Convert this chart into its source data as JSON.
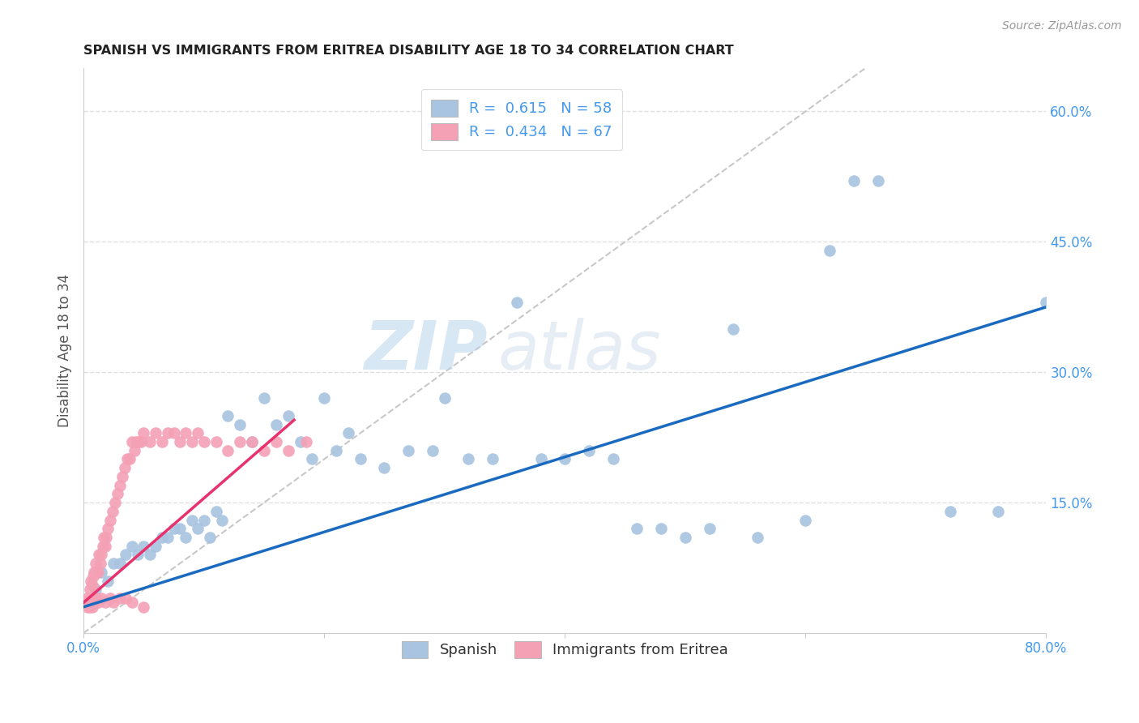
{
  "title": "SPANISH VS IMMIGRANTS FROM ERITREA DISABILITY AGE 18 TO 34 CORRELATION CHART",
  "source": "Source: ZipAtlas.com",
  "ylabel": "Disability Age 18 to 34",
  "x_min": 0.0,
  "x_max": 0.8,
  "y_min": 0.0,
  "y_max": 0.65,
  "x_ticks": [
    0.0,
    0.2,
    0.4,
    0.6,
    0.8
  ],
  "x_tick_labels": [
    "0.0%",
    "",
    "",
    "",
    "80.0%"
  ],
  "y_tick_labels": [
    "15.0%",
    "30.0%",
    "45.0%",
    "60.0%"
  ],
  "y_tick_vals": [
    0.15,
    0.3,
    0.45,
    0.6
  ],
  "blue_color": "#a8c4e0",
  "pink_color": "#f4a0b5",
  "blue_line_color": "#1a6bbf",
  "pink_line_color": "#e8326e",
  "diag_line_color": "#c8c8c8",
  "legend_R1": "0.615",
  "legend_N1": "58",
  "legend_R2": "0.434",
  "legend_N2": "67",
  "label1": "Spanish",
  "label2": "Immigrants from Eritrea",
  "watermark_zip": "ZIP",
  "watermark_atlas": "atlas",
  "blue_line_x": [
    0.0,
    0.8
  ],
  "blue_line_y": [
    0.03,
    0.375
  ],
  "pink_line_x": [
    0.0,
    0.175
  ],
  "pink_line_y": [
    0.035,
    0.245
  ],
  "blue_scatter_x": [
    0.01,
    0.015,
    0.02,
    0.025,
    0.03,
    0.035,
    0.04,
    0.045,
    0.05,
    0.055,
    0.06,
    0.065,
    0.07,
    0.075,
    0.08,
    0.085,
    0.09,
    0.095,
    0.1,
    0.105,
    0.11,
    0.115,
    0.12,
    0.13,
    0.14,
    0.15,
    0.16,
    0.17,
    0.18,
    0.19,
    0.2,
    0.21,
    0.22,
    0.23,
    0.25,
    0.27,
    0.29,
    0.3,
    0.32,
    0.34,
    0.36,
    0.38,
    0.4,
    0.42,
    0.44,
    0.46,
    0.48,
    0.5,
    0.52,
    0.54,
    0.56,
    0.6,
    0.62,
    0.64,
    0.66,
    0.72,
    0.76,
    0.8
  ],
  "blue_scatter_y": [
    0.05,
    0.07,
    0.06,
    0.08,
    0.08,
    0.09,
    0.1,
    0.09,
    0.1,
    0.09,
    0.1,
    0.11,
    0.11,
    0.12,
    0.12,
    0.11,
    0.13,
    0.12,
    0.13,
    0.11,
    0.14,
    0.13,
    0.25,
    0.24,
    0.22,
    0.27,
    0.24,
    0.25,
    0.22,
    0.2,
    0.27,
    0.21,
    0.23,
    0.2,
    0.19,
    0.21,
    0.21,
    0.27,
    0.2,
    0.2,
    0.38,
    0.2,
    0.2,
    0.21,
    0.2,
    0.12,
    0.12,
    0.11,
    0.12,
    0.35,
    0.11,
    0.13,
    0.44,
    0.52,
    0.52,
    0.14,
    0.14,
    0.38
  ],
  "pink_scatter_x": [
    0.003,
    0.005,
    0.006,
    0.007,
    0.008,
    0.009,
    0.01,
    0.011,
    0.012,
    0.013,
    0.014,
    0.015,
    0.016,
    0.017,
    0.018,
    0.019,
    0.02,
    0.022,
    0.024,
    0.026,
    0.028,
    0.03,
    0.032,
    0.034,
    0.036,
    0.038,
    0.04,
    0.042,
    0.044,
    0.046,
    0.048,
    0.05,
    0.055,
    0.06,
    0.065,
    0.07,
    0.075,
    0.08,
    0.085,
    0.09,
    0.095,
    0.1,
    0.11,
    0.12,
    0.13,
    0.14,
    0.15,
    0.16,
    0.17,
    0.185,
    0.003,
    0.004,
    0.005,
    0.006,
    0.007,
    0.008,
    0.009,
    0.01,
    0.012,
    0.015,
    0.018,
    0.022,
    0.025,
    0.03,
    0.035,
    0.04,
    0.05
  ],
  "pink_scatter_y": [
    0.04,
    0.05,
    0.06,
    0.055,
    0.065,
    0.07,
    0.08,
    0.07,
    0.07,
    0.09,
    0.08,
    0.09,
    0.1,
    0.11,
    0.1,
    0.11,
    0.12,
    0.13,
    0.14,
    0.15,
    0.16,
    0.17,
    0.18,
    0.19,
    0.2,
    0.2,
    0.22,
    0.21,
    0.22,
    0.22,
    0.22,
    0.23,
    0.22,
    0.23,
    0.22,
    0.23,
    0.23,
    0.22,
    0.23,
    0.22,
    0.23,
    0.22,
    0.22,
    0.21,
    0.22,
    0.22,
    0.21,
    0.22,
    0.21,
    0.22,
    0.03,
    0.035,
    0.03,
    0.04,
    0.03,
    0.04,
    0.035,
    0.04,
    0.035,
    0.04,
    0.035,
    0.04,
    0.035,
    0.04,
    0.04,
    0.035,
    0.03
  ]
}
